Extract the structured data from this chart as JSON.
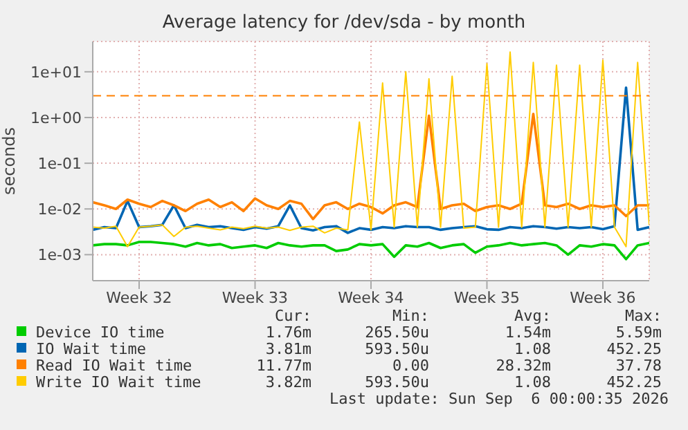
{
  "chart_data": {
    "type": "line",
    "title": "Average latency for /dev/sda - by month",
    "ylabel": "seconds",
    "log": "y",
    "grid": true,
    "legend": "bottom",
    "marker": "none",
    "line_style": "solid",
    "categories": [
      null,
      null,
      null,
      null,
      "Week 32",
      null,
      null,
      null,
      null,
      null,
      null,
      null,
      null,
      null,
      "Week 33",
      null,
      null,
      null,
      null,
      null,
      null,
      null,
      null,
      null,
      "Week 34",
      null,
      null,
      null,
      null,
      null,
      null,
      null,
      null,
      null,
      "Week 35",
      null,
      null,
      null,
      null,
      null,
      null,
      null,
      null,
      null,
      "Week 36",
      null,
      null,
      null,
      null
    ],
    "ylim": [
      0.00027,
      46
    ],
    "yticks": [
      {
        "value": 0.001,
        "label": "1e-03"
      },
      {
        "value": 0.01,
        "label": "1e-02"
      },
      {
        "value": 0.1,
        "label": "1e-01"
      },
      {
        "value": 1,
        "label": "1e+00"
      },
      {
        "value": 10,
        "label": "1e+01"
      }
    ],
    "ref_lines": [
      {
        "axis": "y",
        "value": 3,
        "color": "#ff8000",
        "line_style": "dashed"
      }
    ],
    "series": [
      {
        "name": "Device IO time",
        "color": "#00cc00",
        "values": [
          0.0016,
          0.0017,
          0.0017,
          0.0016,
          0.0019,
          0.0019,
          0.0018,
          0.0017,
          0.0015,
          0.0018,
          0.0016,
          0.0017,
          0.0014,
          0.0015,
          0.0016,
          0.0014,
          0.0018,
          0.0016,
          0.0015,
          0.0016,
          0.0016,
          0.0012,
          0.0013,
          0.0017,
          0.0016,
          0.0017,
          0.0009,
          0.0016,
          0.0015,
          0.0018,
          0.0014,
          0.0016,
          0.0017,
          0.0011,
          0.0015,
          0.0016,
          0.0018,
          0.0016,
          0.0017,
          0.0018,
          0.0016,
          0.001,
          0.0016,
          0.0015,
          0.0017,
          0.0016,
          0.0008,
          0.0016,
          0.0018
        ]
      },
      {
        "name": "IO Wait time",
        "color": "#0066b3",
        "values": [
          0.0035,
          0.004,
          0.0038,
          0.015,
          0.004,
          0.0042,
          0.0045,
          0.012,
          0.0038,
          0.0045,
          0.004,
          0.0042,
          0.0038,
          0.0035,
          0.004,
          0.0037,
          0.0042,
          0.012,
          0.0038,
          0.0034,
          0.004,
          0.0042,
          0.003,
          0.0038,
          0.0035,
          0.004,
          0.0038,
          0.0042,
          0.004,
          0.004,
          0.0035,
          0.0038,
          0.004,
          0.0042,
          0.0036,
          0.0035,
          0.004,
          0.0038,
          0.0042,
          0.004,
          0.0037,
          0.004,
          0.0038,
          0.004,
          0.0036,
          0.0042,
          4.5,
          0.0035,
          0.004
        ]
      },
      {
        "name": "Read IO Wait time",
        "color": "#ff8000",
        "values": [
          0.014,
          0.012,
          0.01,
          0.016,
          0.013,
          0.011,
          0.015,
          0.012,
          0.009,
          0.013,
          0.016,
          0.011,
          0.014,
          0.009,
          0.017,
          0.012,
          0.01,
          0.015,
          0.013,
          0.006,
          0.012,
          0.014,
          0.01,
          0.013,
          0.011,
          0.008,
          0.012,
          0.014,
          0.011,
          1.1,
          0.01,
          0.012,
          0.013,
          0.009,
          0.011,
          0.012,
          0.01,
          0.013,
          1.2,
          0.012,
          0.011,
          0.013,
          0.01,
          0.012,
          0.011,
          0.012,
          0.007,
          0.012,
          0.012
        ]
      },
      {
        "name": "Write IO Wait time",
        "color": "#ffcc00",
        "values": [
          0.004,
          0.0038,
          0.0042,
          0.0015,
          0.004,
          0.0042,
          0.0045,
          0.0025,
          0.004,
          0.0042,
          0.0038,
          0.0035,
          0.004,
          0.0037,
          0.0042,
          0.0038,
          0.004,
          0.0034,
          0.004,
          0.0042,
          0.003,
          0.0038,
          0.0035,
          0.8,
          0.0035,
          5.7,
          0.004,
          10,
          0.004,
          7,
          0.004,
          8,
          0.0038,
          0.004,
          15,
          0.004,
          27,
          0.004,
          16,
          0.004,
          14,
          0.004,
          14,
          0.004,
          18,
          0.004,
          0.0015,
          16,
          0.0045
        ]
      }
    ],
    "annotations": [
      "Cur:",
      "Min:",
      "Avg:",
      "Max:",
      "1.76m",
      "265.50u",
      "1.54m",
      "5.59m",
      "3.81m",
      "593.50u",
      "1.08",
      "452.25",
      "11.77m",
      "0.00",
      "28.32m",
      "37.78",
      "3.82m",
      "593.50u",
      "1.08",
      "452.25",
      "Last update: Sun Sep  6 00:00:35 2026"
    ]
  }
}
